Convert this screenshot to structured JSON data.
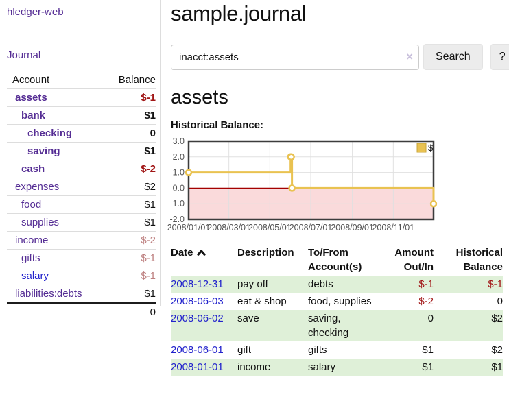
{
  "sidebar": {
    "brand": "hledger-web",
    "journal_label": "Journal",
    "accounts": {
      "header_account": "Account",
      "header_balance": "Balance",
      "rows": [
        {
          "label": "assets",
          "balance": "$-1",
          "indent": 1,
          "bold": true,
          "balance_class": "neg",
          "link_blue": false
        },
        {
          "label": "bank",
          "balance": "$1",
          "indent": 2,
          "bold": true,
          "balance_class": "",
          "link_blue": false
        },
        {
          "label": "checking",
          "balance": "0",
          "indent": 3,
          "bold": true,
          "balance_class": "",
          "link_blue": false
        },
        {
          "label": "saving",
          "balance": "$1",
          "indent": 3,
          "bold": true,
          "balance_class": "",
          "link_blue": false
        },
        {
          "label": "cash",
          "balance": "$-2",
          "indent": 2,
          "bold": true,
          "balance_class": "neg",
          "link_blue": false
        },
        {
          "label": "expenses",
          "balance": "$2",
          "indent": 1,
          "bold": false,
          "balance_class": "",
          "link_blue": false
        },
        {
          "label": "food",
          "balance": "$1",
          "indent": 2,
          "bold": false,
          "balance_class": "",
          "link_blue": false
        },
        {
          "label": "supplies",
          "balance": "$1",
          "indent": 2,
          "bold": false,
          "balance_class": "",
          "link_blue": false
        },
        {
          "label": "income",
          "balance": "$-2",
          "indent": 1,
          "bold": false,
          "balance_class": "negm",
          "link_blue": false
        },
        {
          "label": "gifts",
          "balance": "$-1",
          "indent": 2,
          "bold": false,
          "balance_class": "negm",
          "link_blue": false
        },
        {
          "label": "salary",
          "balance": "$-1",
          "indent": 2,
          "bold": false,
          "balance_class": "negm",
          "link_blue": true
        },
        {
          "label": "liabilities:debts",
          "balance": "$1",
          "indent": 1,
          "bold": false,
          "balance_class": "",
          "link_blue": false
        }
      ],
      "total": "0"
    }
  },
  "main": {
    "title": "sample.journal",
    "search": {
      "value": "inacct:assets",
      "clear_icon": "×",
      "button_label": "Search",
      "help_label": "?"
    },
    "account_heading": "assets",
    "chart_label": "Historical Balance:",
    "register": {
      "headers": {
        "date": "Date",
        "description": "Description",
        "accounts": "To/From\nAccount(s)",
        "amount": "Amount\nOut/In",
        "balance": "Historical\nBalance"
      },
      "rows": [
        {
          "date": "2008-12-31",
          "description": "pay off",
          "accounts": "debts",
          "amount": "$-1",
          "balance": "$-1",
          "amount_class": "neg",
          "balance_class": "neg",
          "shaded": true
        },
        {
          "date": "2008-06-03",
          "description": "eat & shop",
          "accounts": "food, supplies",
          "amount": "$-2",
          "balance": "0",
          "amount_class": "neg",
          "balance_class": "",
          "shaded": false
        },
        {
          "date": "2008-06-02",
          "description": "save",
          "accounts": "saving, checking",
          "amount": "0",
          "balance": "$2",
          "amount_class": "",
          "balance_class": "",
          "shaded": true
        },
        {
          "date": "2008-06-01",
          "description": "gift",
          "accounts": "gifts",
          "amount": "$1",
          "balance": "$2",
          "amount_class": "",
          "balance_class": "",
          "shaded": false
        },
        {
          "date": "2008-01-01",
          "description": "income",
          "accounts": "salary",
          "amount": "$1",
          "balance": "$1",
          "amount_class": "",
          "balance_class": "",
          "shaded": true
        }
      ]
    }
  },
  "chart_data": {
    "type": "line",
    "title": "Historical Balance",
    "step": true,
    "series": [
      {
        "name": "$",
        "color": "#e9c251",
        "x": [
          "2008-01-01",
          "2008-06-01",
          "2008-06-02",
          "2008-06-03",
          "2008-12-31"
        ],
        "values": [
          1,
          2,
          2,
          0,
          -1
        ]
      }
    ],
    "xrange": [
      "2008-01-01",
      "2008-12-31"
    ],
    "ylim": [
      -2,
      3
    ],
    "yticks": [
      3,
      2,
      1,
      0,
      -1,
      -2
    ],
    "ytick_labels": [
      "3.0",
      "2.0",
      "1.0",
      "0.0",
      "-1.0",
      "-2.0"
    ],
    "xticks": [
      "2008/01/01",
      "2008/03/01",
      "2008/05/01",
      "2008/07/01",
      "2008/09/01",
      "2008/11/01"
    ],
    "grid": true,
    "legend_position": "top-right",
    "colors": {
      "grid": "#e0e0e0",
      "border": "#3c3c3c",
      "tick_text": "#545454",
      "negative_region": "#fadadb",
      "zero_line": "#a40000",
      "marker_fill": "#ffffff"
    }
  },
  "colors": {
    "link_purple": "#552d94",
    "link_blue": "#2222cc",
    "negative_strong": "#a11616",
    "negative_muted": "#bd7f7f",
    "row_shade_green": "#dff0d8"
  }
}
